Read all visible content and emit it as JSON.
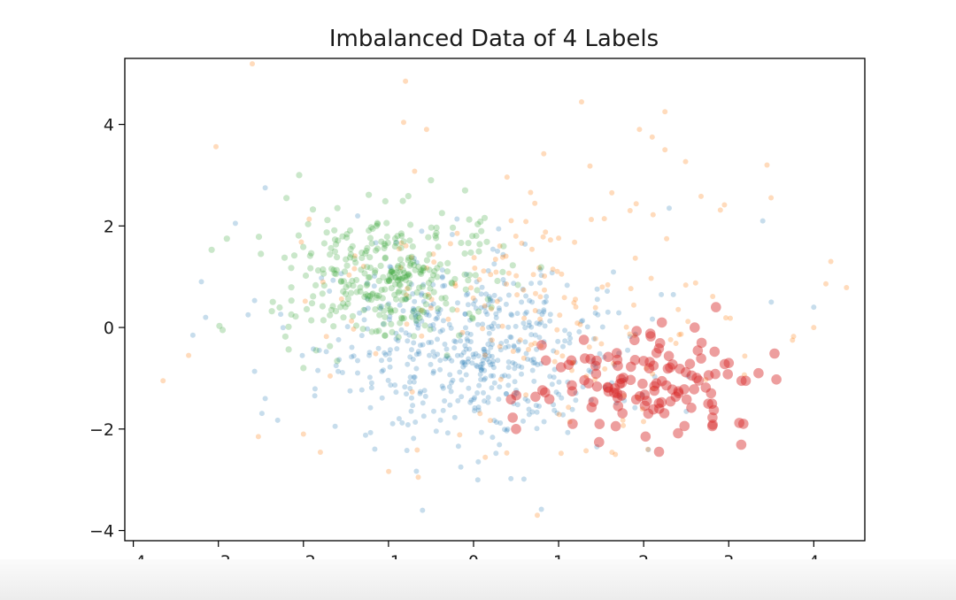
{
  "chart_data": {
    "type": "scatter",
    "title": "Imbalanced Data of 4 Labels",
    "xlabel": "",
    "ylabel": "",
    "xlim": [
      -4.1,
      4.6
    ],
    "ylim": [
      -4.2,
      5.3
    ],
    "xticks": [
      -4,
      -3,
      -2,
      -1,
      0,
      1,
      2,
      3,
      4
    ],
    "yticks": [
      -4,
      -2,
      0,
      2,
      4
    ],
    "grid": false,
    "legend": "none",
    "series": [
      {
        "color": "#1f77b4",
        "clusters": [
          {
            "mean": [
              0.0,
              -0.5
            ],
            "std": [
              0.85,
              0.85
            ],
            "count": 520
          }
        ],
        "points": [
          [
            -3.2,
            0.9
          ],
          [
            -3.15,
            0.2
          ],
          [
            -2.8,
            2.05
          ],
          [
            -2.45,
            2.75
          ],
          [
            -3.3,
            -0.15
          ],
          [
            -0.6,
            -3.6
          ],
          [
            0.05,
            -3.0
          ],
          [
            -0.15,
            -2.75
          ],
          [
            1.45,
            -2.35
          ],
          [
            3.4,
            2.1
          ],
          [
            3.5,
            0.5
          ],
          [
            4.0,
            0.4
          ],
          [
            -2.45,
            -1.4
          ],
          [
            -2.65,
            0.25
          ],
          [
            2.3,
            2.35
          ]
        ]
      },
      {
        "color": "#ff7f0e",
        "clusters": [
          {
            "mean": [
              0.8,
              0.5
            ],
            "std": [
              1.45,
              1.45
            ],
            "count": 190
          }
        ],
        "points": [
          [
            -0.8,
            4.85
          ],
          [
            2.25,
            4.25
          ],
          [
            1.95,
            3.9
          ],
          [
            2.1,
            3.75
          ],
          [
            2.25,
            3.5
          ],
          [
            3.45,
            3.2
          ],
          [
            4.2,
            1.3
          ],
          [
            4.0,
            0.0
          ],
          [
            3.75,
            -0.25
          ],
          [
            -3.65,
            -1.05
          ],
          [
            -3.35,
            -0.55
          ],
          [
            -0.65,
            -2.95
          ],
          [
            0.75,
            -3.7
          ],
          [
            -2.0,
            -2.1
          ],
          [
            2.05,
            -2.4
          ]
        ]
      },
      {
        "color": "#2ca02c",
        "clusters": [
          {
            "mean": [
              -1.0,
              1.0
            ],
            "std": [
              0.6,
              0.62
            ],
            "count": 330
          }
        ],
        "points": [
          [
            -2.05,
            3.0
          ],
          [
            -2.9,
            1.75
          ],
          [
            -2.95,
            -0.05
          ],
          [
            -2.2,
            2.55
          ],
          [
            -2.5,
            1.45
          ],
          [
            -0.5,
            2.9
          ],
          [
            -0.1,
            2.7
          ],
          [
            -1.85,
            -0.45
          ],
          [
            -1.6,
            2.35
          ],
          [
            -2.0,
            -0.8
          ]
        ]
      },
      {
        "color": "#d62728",
        "clusters": [
          {
            "mean": [
              2.05,
              -1.15
            ],
            "std": [
              0.58,
              0.48
            ],
            "count": 120
          }
        ],
        "points": [
          [
            0.5,
            -2.0
          ],
          [
            0.8,
            -0.35
          ],
          [
            0.85,
            -0.65
          ],
          [
            3.2,
            -1.05
          ],
          [
            3.15,
            -1.05
          ],
          [
            3.0,
            -0.7
          ],
          [
            3.35,
            -0.9
          ],
          [
            2.85,
            0.4
          ],
          [
            2.6,
            0.0
          ],
          [
            1.15,
            -0.65
          ]
        ]
      }
    ]
  }
}
